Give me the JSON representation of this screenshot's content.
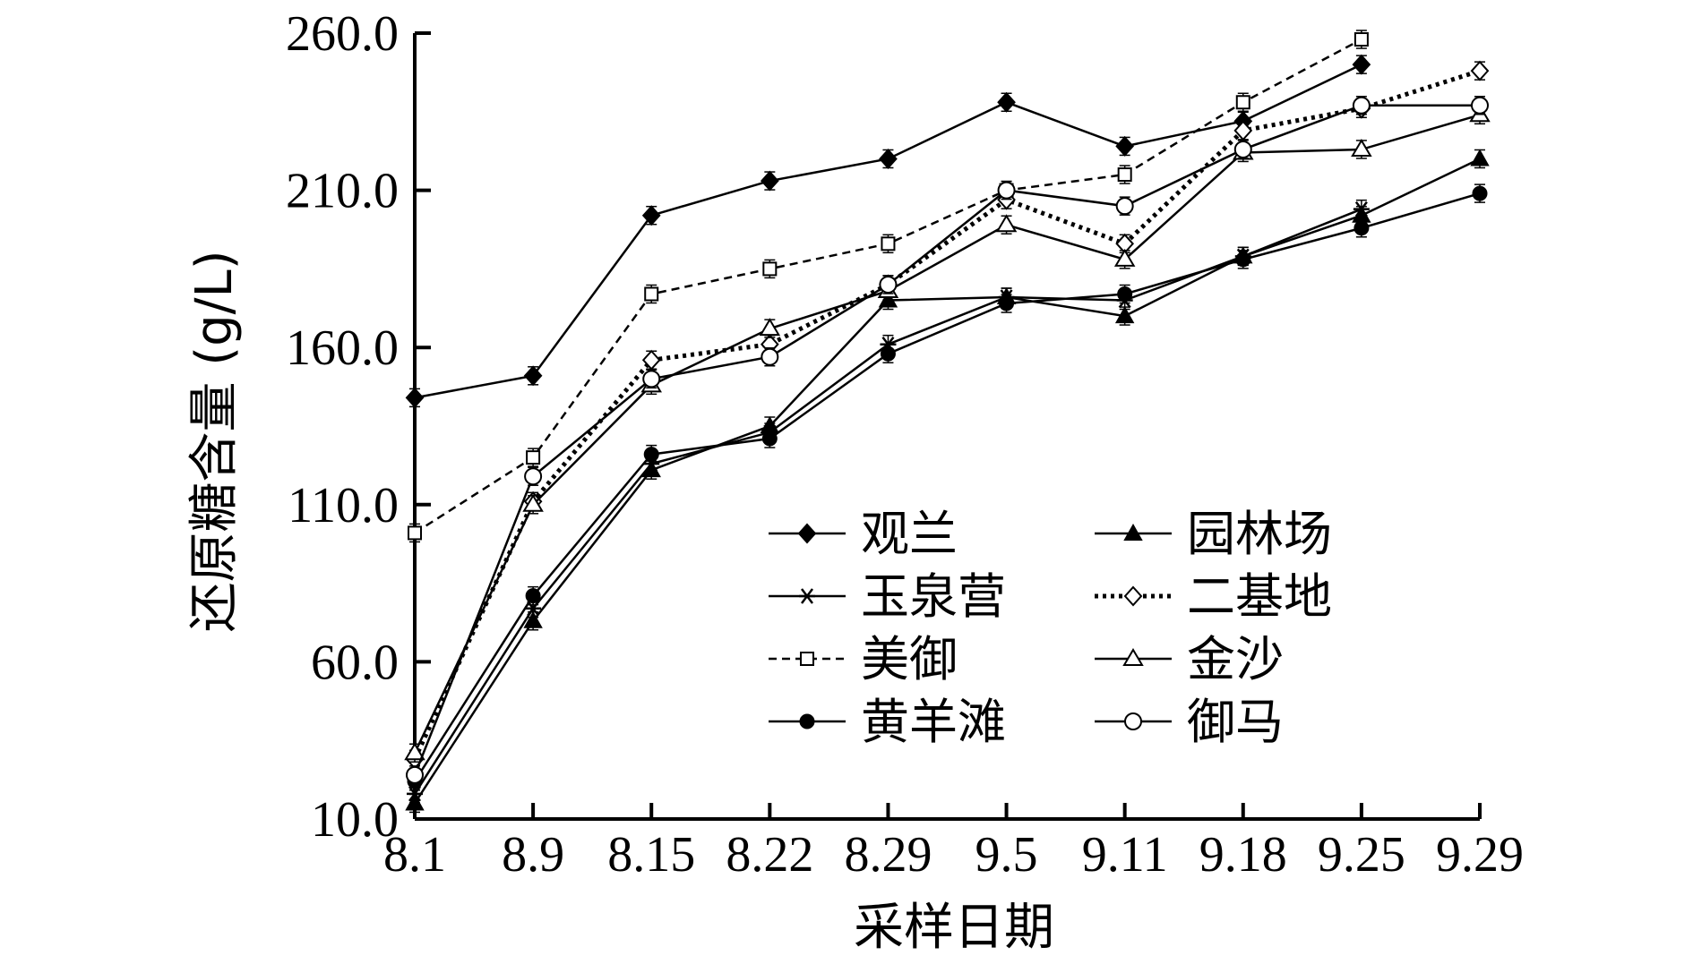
{
  "chart_data": {
    "type": "line",
    "title": "",
    "xlabel": "采样日期",
    "ylabel": "还原糖含量 (g/L)",
    "categories": [
      "8.1",
      "8.9",
      "8.15",
      "8.22",
      "8.29",
      "9.5",
      "9.11",
      "9.18",
      "9.25",
      "9.29"
    ],
    "ylim": [
      10.0,
      260.0
    ],
    "yticks": [
      "10.0",
      "60.0",
      "110.0",
      "160.0",
      "210.0",
      "260.0"
    ],
    "grid": false,
    "legend_position": "center-right",
    "series": [
      {
        "name": "观兰",
        "marker": "diamond-filled",
        "dash": "solid",
        "values": [
          144,
          151,
          202,
          213,
          220,
          238,
          224,
          232,
          250,
          null
        ]
      },
      {
        "name": "玉泉营",
        "marker": "asterisk",
        "dash": "solid",
        "values": [
          18,
          77,
          123,
          133,
          161,
          176,
          175,
          189,
          204,
          null
        ]
      },
      {
        "name": "美御",
        "marker": "square-open",
        "dash": "dashed",
        "values": [
          101,
          125,
          177,
          185,
          193,
          210,
          215,
          238,
          258,
          null
        ]
      },
      {
        "name": "黄羊滩",
        "marker": "circle-filled",
        "dash": "solid",
        "values": [
          22,
          81,
          126,
          131,
          158,
          174,
          177,
          188,
          198,
          209
        ]
      },
      {
        "name": "园林场",
        "marker": "triangle-filled",
        "dash": "solid",
        "values": [
          15,
          73,
          121,
          135,
          175,
          176,
          170,
          189,
          202,
          220
        ]
      },
      {
        "name": "二基地",
        "marker": "diamond-open",
        "dash": "dotted",
        "values": [
          29,
          111,
          156,
          161,
          180,
          207,
          193,
          229,
          236,
          248
        ]
      },
      {
        "name": "金沙",
        "marker": "triangle-open",
        "dash": "solid",
        "values": [
          31,
          110,
          148,
          166,
          178,
          199,
          188,
          222,
          223,
          234
        ]
      },
      {
        "name": "御马",
        "marker": "circle-open",
        "dash": "solid",
        "values": [
          24,
          119,
          150,
          157,
          180,
          210,
          205,
          223,
          237,
          237
        ]
      }
    ]
  }
}
